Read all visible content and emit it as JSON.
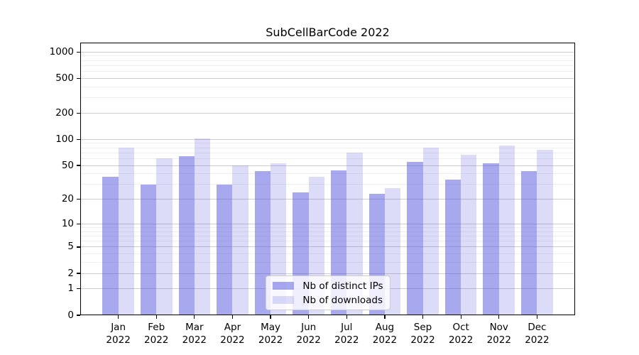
{
  "chart_data": {
    "type": "bar",
    "title": "SubCellBarCode 2022",
    "year": "2022",
    "months": [
      "Jan",
      "Feb",
      "Mar",
      "Apr",
      "May",
      "Jun",
      "Jul",
      "Aug",
      "Sep",
      "Oct",
      "Nov",
      "Dec"
    ],
    "categories": [
      "Jan 2022",
      "Feb 2022",
      "Mar 2022",
      "Apr 2022",
      "May 2022",
      "Jun 2022",
      "Jul 2022",
      "Aug 2022",
      "Sep 2022",
      "Oct 2022",
      "Nov 2022",
      "Dec 2022"
    ],
    "series": [
      {
        "name": "Nb of distinct IPs",
        "color": "rgba(82,82,224,0.5)",
        "values": [
          37,
          30,
          64,
          30,
          43,
          24,
          44,
          23,
          55,
          34,
          53,
          43
        ]
      },
      {
        "name": "Nb of downloads",
        "color": "rgba(82,82,224,0.2)",
        "values": [
          80,
          61,
          103,
          50,
          53,
          37,
          70,
          27,
          81,
          66,
          85,
          76
        ]
      }
    ],
    "xlabel": "",
    "ylabel": "",
    "y_scale": "log1p",
    "ylim": [
      0,
      1280
    ],
    "y_major_ticks": [
      1000,
      500,
      200,
      100,
      50,
      20,
      10,
      5,
      2,
      1,
      0
    ],
    "y_minor_ticks": [
      3,
      4,
      6,
      7,
      8,
      9,
      30,
      40,
      60,
      70,
      80,
      90,
      300,
      400,
      600,
      700,
      800,
      900
    ],
    "grid": true,
    "legend_position": "lower center",
    "colors": {
      "bar_dark": "#a8a8f0",
      "bar_light": "#dcdcf9",
      "major_grid": "#cdcdcd",
      "minor_grid": "#efefef",
      "axis": "#000000",
      "text": "#000000",
      "legend_border": "#cccccc"
    }
  }
}
